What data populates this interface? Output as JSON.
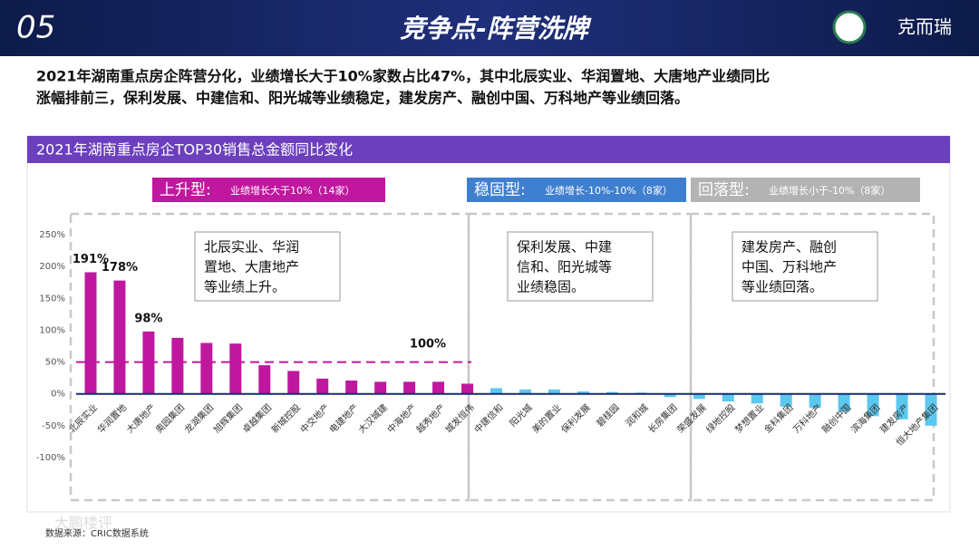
{
  "header": {
    "number": "05",
    "title": "竞争点-阵营洗牌",
    "logo": "克而瑞"
  },
  "summary": [
    "2021年湖南重点房企阵营分化，业绩增长大于10%家数占比47%，其中北辰实业、华润置地、大唐地产业绩同比",
    "涨幅排前三，保利发展、中建信和、阳光城等业绩稳定，建发房产、融创中国、万科地产等业绩回落。"
  ],
  "chart_data": {
    "type": "bar",
    "title": "2021年湖南重点房企TOP30销售总金额同比变化",
    "categories": [
      "北辰实业",
      "华润置地",
      "大唐地产",
      "奥园集团",
      "龙湖集团",
      "旭辉集团",
      "卓越集团",
      "新城控股",
      "中交地产",
      "电建地产",
      "大汉城建",
      "中海地产",
      "越秀地产",
      "城发恒伟",
      "中建信和",
      "阳光城",
      "美的置业",
      "保利发展",
      "碧桂园",
      "润和城",
      "长房集团",
      "荣盛发展",
      "绿地控股",
      "梦想置业",
      "金科集团",
      "万科地产",
      "融创中国",
      "滨海集团",
      "建发房产",
      "恒大地产集团"
    ],
    "values": [
      191,
      178,
      98,
      88,
      80,
      79,
      45,
      36,
      24,
      21,
      19,
      19,
      19,
      16,
      9,
      7,
      7,
      4,
      3,
      2,
      -5,
      -8,
      -12,
      -15,
      -20,
      -22,
      -28,
      -35,
      -40,
      -50
    ],
    "value_labels": [
      "191%",
      "178%",
      "98%",
      null,
      null,
      null,
      null,
      null,
      null,
      null,
      null,
      null,
      null,
      null,
      null,
      null,
      null,
      null,
      null,
      null,
      null,
      null,
      null,
      null,
      null,
      null,
      null,
      null,
      null,
      null
    ],
    "colors": [
      "#c0179f",
      "#c0179f",
      "#c0179f",
      "#c0179f",
      "#c0179f",
      "#c0179f",
      "#c0179f",
      "#c0179f",
      "#c0179f",
      "#c0179f",
      "#c0179f",
      "#c0179f",
      "#c0179f",
      "#c0179f",
      "#5cc8ef",
      "#5cc8ef",
      "#5cc8ef",
      "#5cc8ef",
      "#5cc8ef",
      "#5cc8ef",
      "#5cc8ef",
      "#5cc8ef",
      "#5cc8ef",
      "#5cc8ef",
      "#5cc8ef",
      "#5cc8ef",
      "#5cc8ef",
      "#5cc8ef",
      "#5cc8ef",
      "#5cc8ef"
    ],
    "ylim": [
      -100,
      250
    ],
    "yticks": [
      {
        "value": 250,
        "label": "250%"
      },
      {
        "value": 200,
        "label": "200%"
      },
      {
        "value": 150,
        "label": "150%"
      },
      {
        "value": 100,
        "label": "100%"
      },
      {
        "value": 50,
        "label": "50%"
      },
      {
        "value": 0,
        "label": "0%"
      },
      {
        "value": -50,
        "label": "-50%"
      },
      {
        "value": -100,
        "label": "-100%"
      }
    ],
    "grid": false,
    "reference_line": 50,
    "annotation": "100%",
    "groups": [
      {
        "name": "上升型:",
        "note": "业绩增长大于10%（14家）",
        "color": "#c0179f",
        "text": [
          "北辰实业、华润",
          "置地、大唐地产",
          "等业绩上升。"
        ]
      },
      {
        "name": "稳固型:",
        "note": "业绩增长-10%-10%（8家）",
        "color": "#3f7fcf",
        "text": [
          "保利发展、中建",
          "信和、阳光城等",
          "业绩稳固。"
        ]
      },
      {
        "name": "回落型:",
        "note": "业绩增长小于-10%（8家）",
        "color": "#b3b3b3",
        "text": [
          "建发房产、融创",
          "中国、万科地产",
          "等业绩回落。"
        ]
      }
    ],
    "source": "数据来源：CRIC数据系统",
    "watermark": "大鹏楼评"
  }
}
